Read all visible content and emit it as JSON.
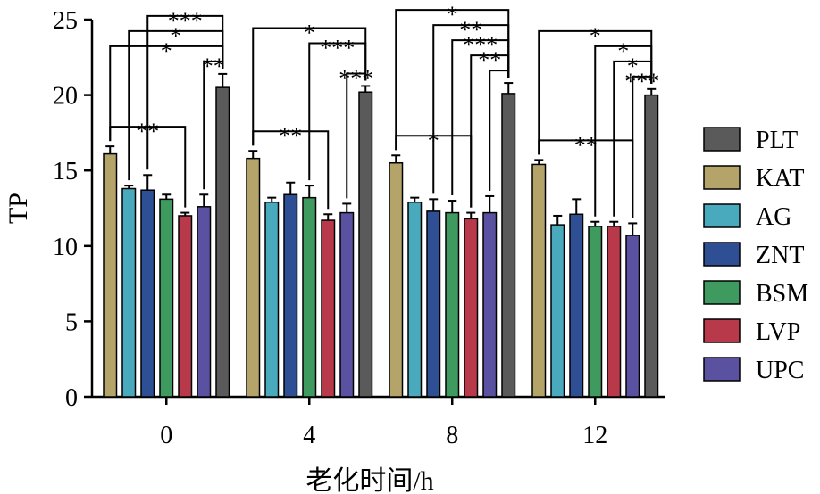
{
  "chart_data": {
    "type": "bar",
    "title": "",
    "xlabel": "老化时间/h",
    "ylabel": "TP",
    "ylim": [
      0,
      25
    ],
    "yticks": [
      0,
      5,
      10,
      15,
      20,
      25
    ],
    "grid": false,
    "legend_position": "right",
    "categories": [
      "0",
      "4",
      "8",
      "12"
    ],
    "series": [
      {
        "name": "KAT",
        "color": "#b5a46a",
        "values": [
          16.1,
          15.8,
          15.5,
          15.4
        ],
        "errors": [
          0.5,
          0.5,
          0.5,
          0.3
        ]
      },
      {
        "name": "AG",
        "color": "#4aaabd",
        "values": [
          13.8,
          12.9,
          12.9,
          11.4
        ],
        "errors": [
          0.2,
          0.3,
          0.3,
          0.6
        ]
      },
      {
        "name": "ZNT",
        "color": "#2e4f93",
        "values": [
          13.7,
          13.4,
          12.3,
          12.1
        ],
        "errors": [
          1.0,
          0.8,
          0.8,
          1.0
        ]
      },
      {
        "name": "BSM",
        "color": "#3f9a5f",
        "values": [
          13.1,
          13.2,
          12.2,
          11.3
        ],
        "errors": [
          0.3,
          0.8,
          0.8,
          0.3
        ]
      },
      {
        "name": "LVP",
        "color": "#b83a4a",
        "values": [
          12.0,
          11.7,
          11.8,
          11.3
        ],
        "errors": [
          0.2,
          0.4,
          0.4,
          0.3
        ]
      },
      {
        "name": "UPC",
        "color": "#5a52a0",
        "values": [
          12.6,
          12.2,
          12.2,
          10.7
        ],
        "errors": [
          0.8,
          0.6,
          1.1,
          0.8
        ]
      },
      {
        "name": "PLT",
        "color": "#5a5a5a",
        "values": [
          20.5,
          20.2,
          20.1,
          20.0
        ],
        "errors": [
          0.9,
          0.4,
          0.7,
          0.4
        ]
      }
    ],
    "legend_order": [
      "PLT",
      "KAT",
      "AG",
      "ZNT",
      "BSM",
      "LVP",
      "UPC"
    ],
    "annotations": [
      {
        "group": 0,
        "from": "KAT",
        "to": "LVP",
        "label": "**",
        "level": 0
      },
      {
        "group": 0,
        "from": "KAT",
        "to": "PLT",
        "label": "*",
        "level": 1
      },
      {
        "group": 0,
        "from": "AG",
        "to": "PLT",
        "label": "*",
        "level": 2
      },
      {
        "group": 0,
        "from": "ZNT",
        "to": "PLT",
        "label": "***",
        "level": 3
      },
      {
        "group": 0,
        "from": "UPC",
        "to": "PLT",
        "label": "**",
        "level": 0
      },
      {
        "group": 1,
        "from": "KAT",
        "to": "LVP",
        "label": "**",
        "level": 0
      },
      {
        "group": 1,
        "from": "KAT",
        "to": "PLT",
        "label": "*",
        "level": 3
      },
      {
        "group": 1,
        "from": "BSM",
        "to": "PLT",
        "label": "***",
        "level": 2
      },
      {
        "group": 1,
        "from": "UPC",
        "to": "PLT",
        "label": "***",
        "level": 0
      },
      {
        "group": 2,
        "from": "KAT",
        "to": "LVP",
        "label": "*",
        "level": 0
      },
      {
        "group": 2,
        "from": "KAT",
        "to": "PLT",
        "label": "*",
        "level": 4
      },
      {
        "group": 2,
        "from": "ZNT",
        "to": "PLT",
        "label": "**",
        "level": 3
      },
      {
        "group": 2,
        "from": "BSM",
        "to": "PLT",
        "label": "***",
        "level": 2
      },
      {
        "group": 2,
        "from": "LVP",
        "to": "PLT",
        "label": "**",
        "level": 1
      },
      {
        "group": 2,
        "from": "UPC",
        "to": "PLT",
        "label": "",
        "level": 0
      },
      {
        "group": 3,
        "from": "KAT",
        "to": "UPC",
        "label": "**",
        "level": 0
      },
      {
        "group": 3,
        "from": "KAT",
        "to": "PLT",
        "label": "*",
        "level": 3
      },
      {
        "group": 3,
        "from": "BSM",
        "to": "PLT",
        "label": "*",
        "level": 2
      },
      {
        "group": 3,
        "from": "LVP",
        "to": "PLT",
        "label": "*",
        "level": 1
      },
      {
        "group": 3,
        "from": "UPC",
        "to": "PLT",
        "label": "***",
        "level": 0
      }
    ]
  }
}
